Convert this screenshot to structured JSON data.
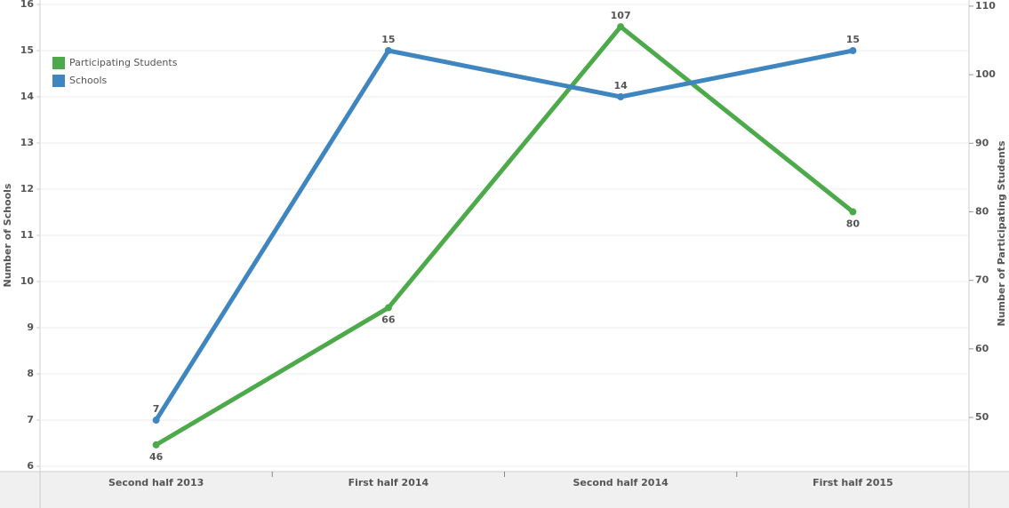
{
  "chart_data": {
    "type": "line",
    "categories": [
      "Second half 2013",
      "First half 2014",
      "Second half 2014",
      "First half 2015"
    ],
    "y_label": "Number of Schools",
    "y2_label": "Number of Participating Students",
    "ylim": [
      5.885,
      16.096
    ],
    "yticks": [
      6,
      7,
      8,
      9,
      10,
      11,
      12,
      13,
      14,
      15,
      16
    ],
    "y2lim": [
      42.1,
      110.9
    ],
    "y2ticks": [
      50,
      60,
      70,
      80,
      90,
      100,
      110
    ],
    "grid": true,
    "legend": "top-left",
    "series": [
      {
        "name": "Participating Students",
        "color": "#4caa4a",
        "axis": "y2",
        "values": [
          46,
          66,
          107,
          80
        ]
      },
      {
        "name": "Schools",
        "color": "#3f86c1",
        "values": [
          7,
          15,
          14,
          15
        ]
      }
    ]
  }
}
